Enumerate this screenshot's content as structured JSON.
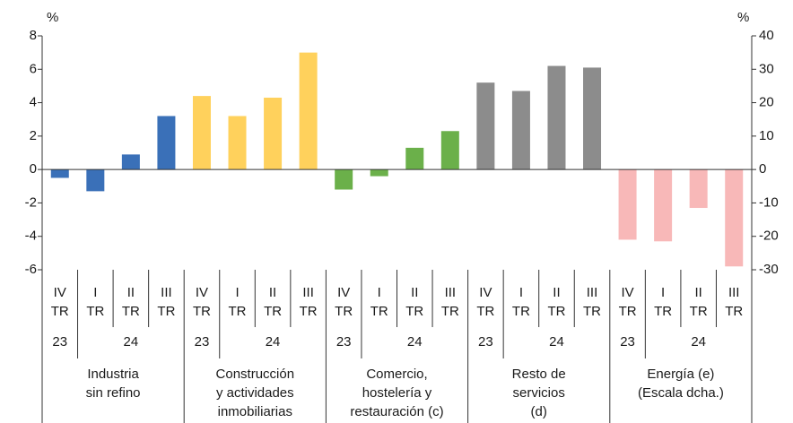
{
  "chart_data": {
    "type": "bar",
    "y_unit": "%",
    "y2_unit": "%",
    "ylim": [
      -6,
      8
    ],
    "yticks": [
      -6,
      -4,
      -2,
      0,
      2,
      4,
      6,
      8
    ],
    "y2lim": [
      -30,
      40
    ],
    "y2ticks": [
      -30,
      -20,
      -10,
      0,
      10,
      20,
      30,
      40
    ],
    "series": [
      {
        "name": [
          "Industria",
          "sin refino"
        ],
        "color": "#3a70b8",
        "axis": "y",
        "categories": [
          [
            "IV",
            "TR"
          ],
          [
            "I",
            "TR"
          ],
          [
            "II",
            "TR"
          ],
          [
            "III",
            "TR"
          ]
        ],
        "years": [
          "23",
          "24"
        ],
        "values": [
          -0.5,
          -1.3,
          0.9,
          3.2
        ]
      },
      {
        "name": [
          "Construcción",
          "y actividades",
          "inmobiliarias"
        ],
        "color": "#ffd15c",
        "axis": "y",
        "categories": [
          [
            "IV",
            "TR"
          ],
          [
            "I",
            "TR"
          ],
          [
            "II",
            "TR"
          ],
          [
            "III",
            "TR"
          ]
        ],
        "years": [
          "23",
          "24"
        ],
        "values": [
          4.4,
          3.2,
          4.3,
          7.0
        ]
      },
      {
        "name": [
          "Comercio,",
          "hostelería y",
          "restauración (c)"
        ],
        "color": "#6bb04a",
        "axis": "y",
        "categories": [
          [
            "IV",
            "TR"
          ],
          [
            "I",
            "TR"
          ],
          [
            "II",
            "TR"
          ],
          [
            "III",
            "TR"
          ]
        ],
        "years": [
          "23",
          "24"
        ],
        "values": [
          -1.2,
          -0.4,
          1.3,
          2.3
        ]
      },
      {
        "name": [
          "Resto de",
          "servicios",
          "(d)"
        ],
        "color": "#8c8c8c",
        "axis": "y",
        "categories": [
          [
            "IV",
            "TR"
          ],
          [
            "I",
            "TR"
          ],
          [
            "II",
            "TR"
          ],
          [
            "III",
            "TR"
          ]
        ],
        "years": [
          "23",
          "24"
        ],
        "values": [
          5.2,
          4.7,
          6.2,
          6.1
        ]
      },
      {
        "name": [
          "Energía (e)",
          "(Escala dcha.)"
        ],
        "color": "#f8b8b8",
        "axis": "y2",
        "categories": [
          [
            "IV",
            "TR"
          ],
          [
            "I",
            "TR"
          ],
          [
            "II",
            "TR"
          ],
          [
            "III",
            "TR"
          ]
        ],
        "years": [
          "23",
          "24"
        ],
        "values": [
          -21,
          -21.5,
          -11.5,
          -29
        ]
      }
    ]
  }
}
